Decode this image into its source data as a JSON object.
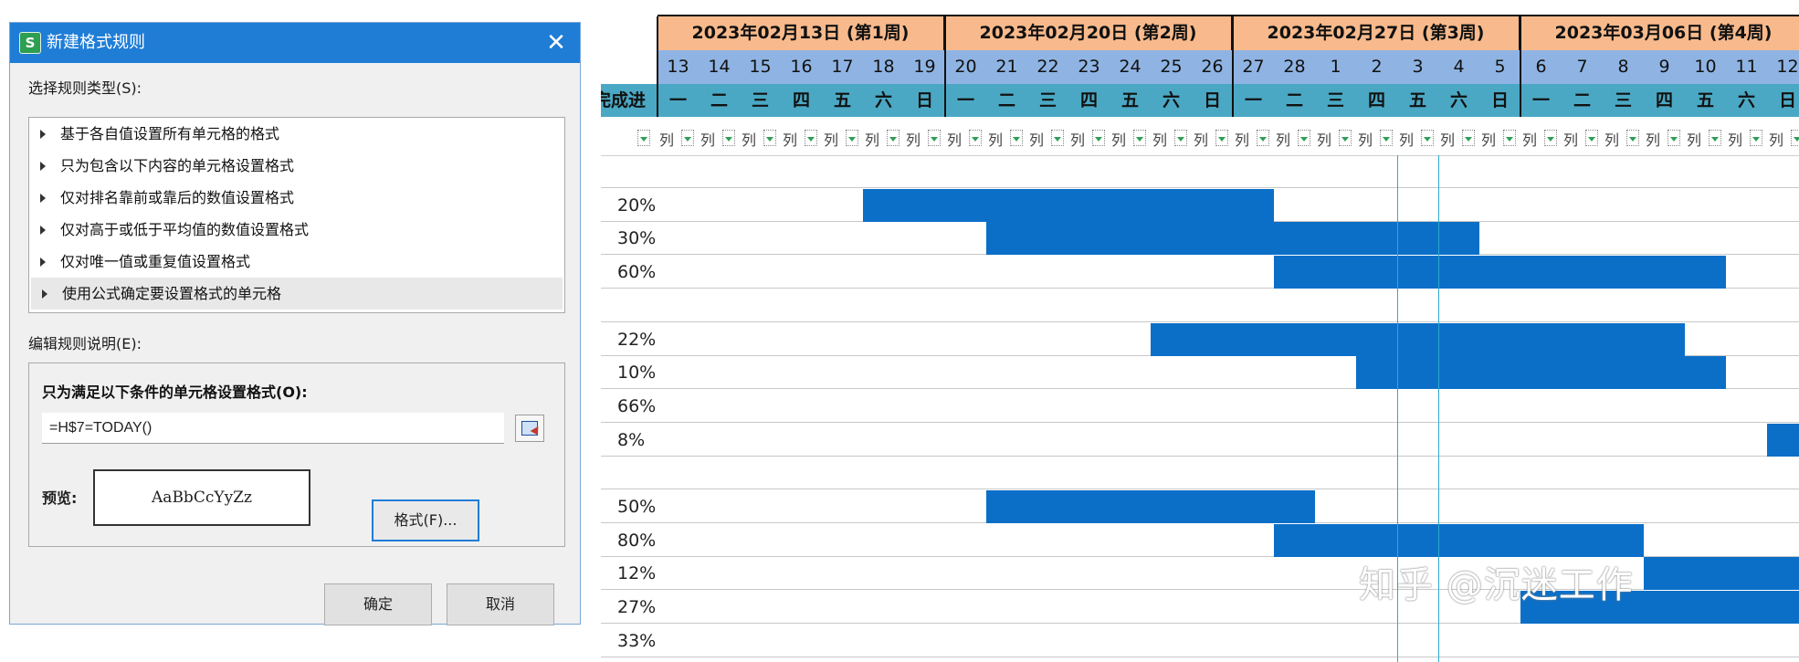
{
  "dialog": {
    "title": "新建格式规则",
    "app_icon": "S",
    "close_glyph": "✕",
    "select_type_label": "选择规则类型(S):",
    "rule_types": [
      "基于各自值设置所有单元格的格式",
      "只为包含以下内容的单元格设置格式",
      "仅对排名靠前或靠后的数值设置格式",
      "仅对高于或低于平均值的数值设置格式",
      "仅对唯一值或重复值设置格式",
      "使用公式确定要设置格式的单元格"
    ],
    "selected_rule": 5,
    "edit_desc_label": "编辑规则说明(E):",
    "condition_label": "只为满足以下条件的单元格设置格式(O):",
    "formula": "=H$7=TODAY()",
    "preview_label": "预览:",
    "preview_text": "AaBbCcYyZz",
    "format_button": "格式(F)...",
    "ok_button": "确定",
    "cancel_button": "取消"
  },
  "gantt": {
    "progress_header": "完成进度",
    "weeks": [
      "2023年02月13日 (第1周)",
      "2023年02月20日 (第2周)",
      "2023年02月27日 (第3周)",
      "2023年03月06日 (第4周)"
    ],
    "days": [
      "13",
      "14",
      "15",
      "16",
      "17",
      "18",
      "19",
      "20",
      "21",
      "22",
      "23",
      "24",
      "25",
      "26",
      "27",
      "28",
      "1",
      "2",
      "3",
      "4",
      "5",
      "6",
      "7",
      "8",
      "9",
      "10",
      "11",
      "12"
    ],
    "weekdays": [
      "一",
      "二",
      "三",
      "四",
      "五",
      "六",
      "日",
      "一",
      "二",
      "三",
      "四",
      "五",
      "六",
      "日",
      "一",
      "二",
      "三",
      "四",
      "五",
      "六",
      "日",
      "一",
      "二",
      "三",
      "四",
      "五",
      "六",
      "日"
    ],
    "filter_label": "列",
    "today_day_index": 18,
    "rows": [
      {
        "progress": "",
        "bar_start": null,
        "bar_end": null
      },
      {
        "progress": "20%",
        "bar_start": 5,
        "bar_end": 15
      },
      {
        "progress": "30%",
        "bar_start": 8,
        "bar_end": 20
      },
      {
        "progress": "60%",
        "bar_start": 15,
        "bar_end": 26
      },
      {
        "progress": "",
        "bar_start": null,
        "bar_end": null
      },
      {
        "progress": "22%",
        "bar_start": 12,
        "bar_end": 25
      },
      {
        "progress": "10%",
        "bar_start": 17,
        "bar_end": 26
      },
      {
        "progress": "66%",
        "bar_start": null,
        "bar_end": null
      },
      {
        "progress": "8%",
        "bar_start": 27,
        "bar_end": 28
      },
      {
        "progress": "",
        "bar_start": null,
        "bar_end": null
      },
      {
        "progress": "50%",
        "bar_start": 8,
        "bar_end": 16
      },
      {
        "progress": "80%",
        "bar_start": 15,
        "bar_end": 24
      },
      {
        "progress": "12%",
        "bar_start": 24,
        "bar_end": 28
      },
      {
        "progress": "27%",
        "bar_start": 21,
        "bar_end": 28
      },
      {
        "progress": "33%",
        "bar_start": null,
        "bar_end": null
      }
    ],
    "bar_color": "#0b6fc8",
    "watermark": "知乎 @沉迷工作"
  }
}
